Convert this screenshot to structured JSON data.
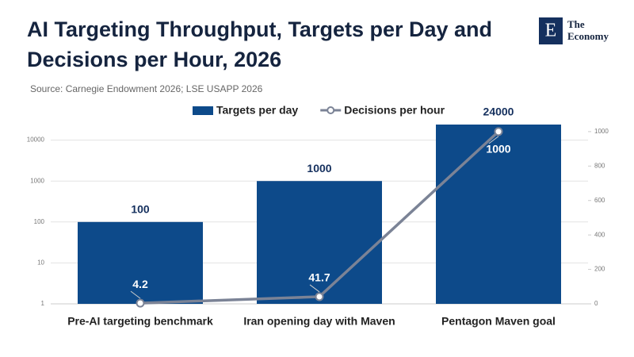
{
  "logo": {
    "mark": "E",
    "line1": "The",
    "line2": "Economy"
  },
  "chart_data": {
    "type": "combo",
    "title": "AI Targeting Throughput, Targets per Day and Decisions per Hour, 2026",
    "source": "Source: Carnegie Endowment 2026; LSE USAPP 2026",
    "categories": [
      "Pre-AI targeting benchmark",
      "Iran opening day with Maven",
      "Pentagon Maven goal"
    ],
    "series": [
      {
        "name": "Targets per day",
        "type": "bar",
        "color": "#0d4a8a",
        "values": [
          100,
          1000,
          24000
        ]
      },
      {
        "name": "Decisions per hour",
        "type": "line",
        "axis": "y2",
        "color": "#7b8396",
        "values": [
          4.2,
          41.7,
          1000
        ]
      }
    ],
    "ylog": true,
    "ylim": [
      1,
      30000
    ],
    "yticks": [
      1,
      10,
      100,
      1000,
      10000
    ],
    "y2lim": [
      0,
      1064
    ],
    "y2ticks": [
      0,
      200,
      400,
      600,
      800,
      1000
    ],
    "grid": true
  }
}
